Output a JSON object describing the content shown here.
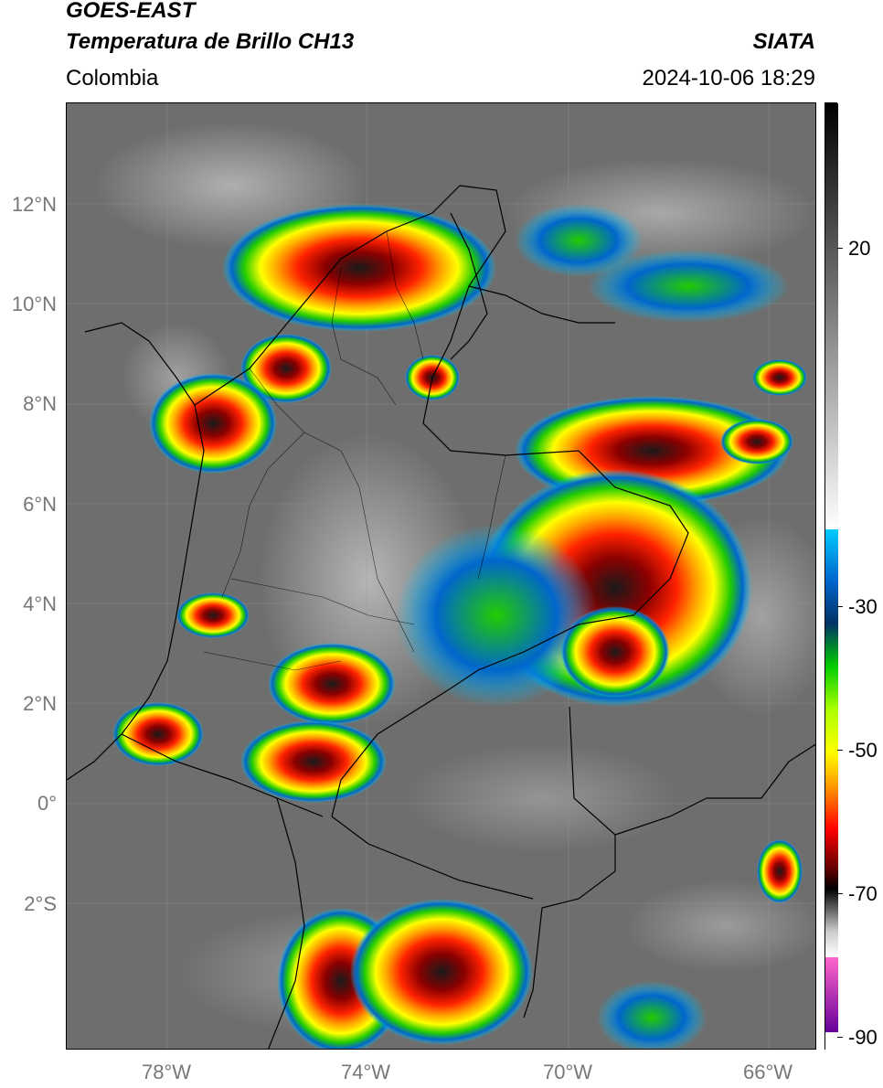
{
  "header": {
    "satellite": "GOES-EAST",
    "product": "Temperatura de Brillo CH13",
    "region": "Colombia",
    "organization": "SIATA",
    "timestamp": "2024-10-06 18:29"
  },
  "axes": {
    "lat_labels": [
      "12°N",
      "10°N",
      "8°N",
      "6°N",
      "4°N",
      "2°N",
      "0°",
      "2°S"
    ],
    "lon_labels": [
      "78°W",
      "74°W",
      "70°W",
      "66°W"
    ]
  },
  "colorbar": {
    "ticks": [
      "20",
      "-30",
      "-50",
      "-70",
      "-90"
    ]
  },
  "colors": {
    "background_gray": "#707070",
    "border": "#000000"
  }
}
